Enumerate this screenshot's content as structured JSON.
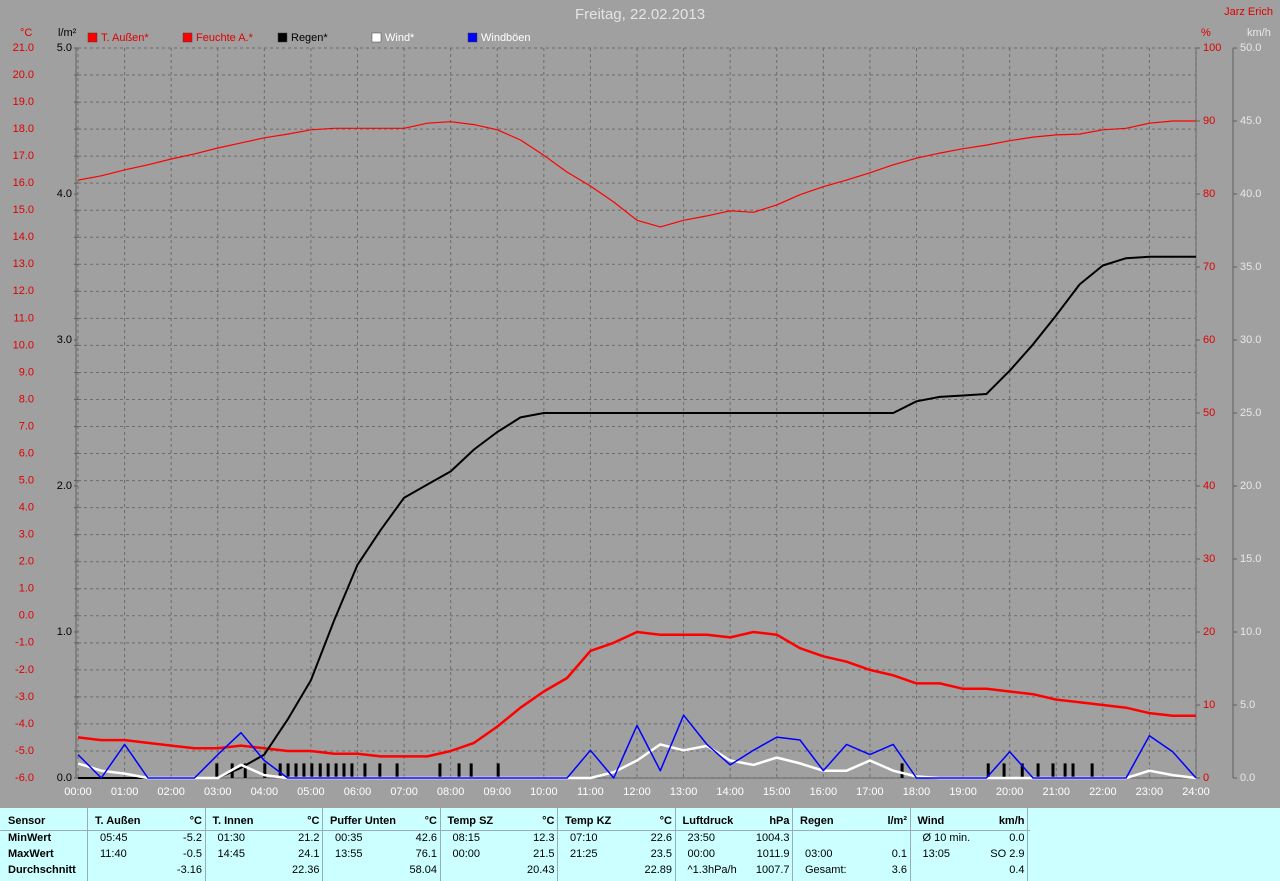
{
  "chart_data": {
    "type": "line",
    "title": "Freitag, 22.02.2013",
    "author": "Jarz Erich",
    "x": [
      0,
      0.5,
      1,
      1.5,
      2,
      2.5,
      3,
      3.5,
      4,
      4.5,
      5,
      5.5,
      6,
      6.5,
      7,
      7.5,
      8,
      8.5,
      9,
      9.5,
      10,
      10.5,
      11,
      11.5,
      12,
      12.5,
      13,
      13.5,
      14,
      14.5,
      15,
      15.5,
      16,
      16.5,
      17,
      17.5,
      18,
      18.5,
      19,
      19.5,
      20,
      20.5,
      21,
      21.5,
      22,
      22.5,
      23,
      23.5,
      24
    ],
    "xlim": [
      0,
      24
    ],
    "xticks": [
      {
        "value": 0,
        "label": "00:00"
      },
      {
        "value": 1,
        "label": "01:00"
      },
      {
        "value": 2,
        "label": "02:00"
      },
      {
        "value": 3,
        "label": "03:00"
      },
      {
        "value": 4,
        "label": "04:00"
      },
      {
        "value": 5,
        "label": "05:00"
      },
      {
        "value": 6,
        "label": "06:00"
      },
      {
        "value": 7,
        "label": "07:00"
      },
      {
        "value": 8,
        "label": "08:00"
      },
      {
        "value": 9,
        "label": "09:00"
      },
      {
        "value": 10,
        "label": "10:00"
      },
      {
        "value": 11,
        "label": "11:00"
      },
      {
        "value": 12,
        "label": "12:00"
      },
      {
        "value": 13,
        "label": "13:00"
      },
      {
        "value": 14,
        "label": "14:00"
      },
      {
        "value": 15,
        "label": "15:00"
      },
      {
        "value": 16,
        "label": "16:00"
      },
      {
        "value": 17,
        "label": "17:00"
      },
      {
        "value": 18,
        "label": "18:00"
      },
      {
        "value": 19,
        "label": "19:00"
      },
      {
        "value": 20,
        "label": "20:00"
      },
      {
        "value": 21,
        "label": "21:00"
      },
      {
        "value": 22,
        "label": "22:00"
      },
      {
        "value": 23,
        "label": "23:00"
      },
      {
        "value": 24,
        "label": "24:00"
      }
    ],
    "grid": true,
    "axes": [
      {
        "unit": "°C",
        "color": "#e00000",
        "lim": [
          -6,
          21
        ],
        "ticks": [
          {
            "value": -6,
            "label": "-6.0"
          },
          {
            "value": -5,
            "label": "-5.0"
          },
          {
            "value": -4,
            "label": "-4.0"
          },
          {
            "value": -3,
            "label": "-3.0"
          },
          {
            "value": -2,
            "label": "-2.0"
          },
          {
            "value": -1,
            "label": "-1.0"
          },
          {
            "value": 0,
            "label": "0.0"
          },
          {
            "value": 1,
            "label": "1.0"
          },
          {
            "value": 2,
            "label": "2.0"
          },
          {
            "value": 3,
            "label": "3.0"
          },
          {
            "value": 4,
            "label": "4.0"
          },
          {
            "value": 5,
            "label": "5.0"
          },
          {
            "value": 6,
            "label": "6.0"
          },
          {
            "value": 7,
            "label": "7.0"
          },
          {
            "value": 8,
            "label": "8.0"
          },
          {
            "value": 9,
            "label": "9.0"
          },
          {
            "value": 10,
            "label": "10.0"
          },
          {
            "value": 11,
            "label": "11.0"
          },
          {
            "value": 12,
            "label": "12.0"
          },
          {
            "value": 13,
            "label": "13.0"
          },
          {
            "value": 14,
            "label": "14.0"
          },
          {
            "value": 15,
            "label": "15.0"
          },
          {
            "value": 16,
            "label": "16.0"
          },
          {
            "value": 17,
            "label": "17.0"
          },
          {
            "value": 18,
            "label": "18.0"
          },
          {
            "value": 19,
            "label": "19.0"
          },
          {
            "value": 20,
            "label": "20.0"
          },
          {
            "value": 21,
            "label": "21.0"
          }
        ]
      },
      {
        "unit": "l/m²",
        "color": "#000000",
        "lim": [
          0,
          5
        ],
        "ticks": [
          {
            "value": 0,
            "label": "0.0"
          },
          {
            "value": 1,
            "label": "1.0"
          },
          {
            "value": 2,
            "label": "2.0"
          },
          {
            "value": 3,
            "label": "3.0"
          },
          {
            "value": 4,
            "label": "4.0"
          },
          {
            "value": 5,
            "label": "5.0"
          }
        ]
      },
      {
        "unit": "%",
        "color": "#e00000",
        "lim": [
          0,
          100
        ],
        "ticks": [
          0,
          10,
          20,
          30,
          40,
          50,
          60,
          70,
          80,
          90,
          100
        ]
      },
      {
        "unit": "km/h",
        "color": "#e8e8e8",
        "lim": [
          0,
          50
        ],
        "ticks": [
          {
            "value": 0,
            "label": "0.0"
          },
          {
            "value": 5,
            "label": "5.0"
          },
          {
            "value": 10,
            "label": "10.0"
          },
          {
            "value": 15,
            "label": "15.0"
          },
          {
            "value": 20,
            "label": "20.0"
          },
          {
            "value": 25,
            "label": "25.0"
          },
          {
            "value": 30,
            "label": "30.0"
          },
          {
            "value": 35,
            "label": "35.0"
          },
          {
            "value": 40,
            "label": "40.0"
          },
          {
            "value": 45,
            "label": "45.0"
          },
          {
            "value": 50,
            "label": "50.0"
          }
        ]
      }
    ],
    "series": [
      {
        "name": "T. Außen*",
        "color": "#ff0000",
        "axis": 0,
        "values": [
          -4.5,
          -4.6,
          -4.6,
          -4.7,
          -4.8,
          -4.9,
          -4.9,
          -4.8,
          -4.9,
          -5.0,
          -5.0,
          -5.1,
          -5.1,
          -5.2,
          -5.2,
          -5.2,
          -5.0,
          -4.7,
          -4.1,
          -3.4,
          -2.8,
          -2.3,
          -1.3,
          -1.0,
          -0.6,
          -0.7,
          -0.7,
          -0.7,
          -0.8,
          -0.6,
          -0.7,
          -1.2,
          -1.5,
          -1.7,
          -2.0,
          -2.2,
          -2.5,
          -2.5,
          -2.7,
          -2.7,
          -2.8,
          -2.9,
          -3.1,
          -3.2,
          -3.3,
          -3.4,
          -3.6,
          -3.7,
          -3.7
        ]
      },
      {
        "name": "Feuchte A.*",
        "color": "#ff0000",
        "axis": 2,
        "values": [
          81.9,
          82.5,
          83.3,
          84.0,
          84.8,
          85.5,
          86.3,
          87.0,
          87.7,
          88.2,
          88.8,
          89.0,
          89.0,
          89.0,
          89.0,
          89.7,
          89.9,
          89.5,
          88.8,
          87.4,
          85.3,
          83.0,
          81.1,
          78.9,
          76.4,
          75.5,
          76.4,
          77.0,
          77.7,
          77.5,
          78.5,
          79.9,
          81.0,
          81.9,
          82.9,
          84.0,
          84.9,
          85.6,
          86.2,
          86.7,
          87.3,
          87.8,
          88.1,
          88.2,
          88.8,
          89.0,
          89.7,
          90.0,
          90.0
        ]
      },
      {
        "name": "Regen*",
        "color": "#000000",
        "axis": 1,
        "values": [
          0,
          0,
          0,
          0,
          0,
          0,
          0,
          0.07,
          0.16,
          0.4,
          0.67,
          1.08,
          1.46,
          1.7,
          1.92,
          2.01,
          2.1,
          2.25,
          2.37,
          2.47,
          2.5,
          2.5,
          2.5,
          2.5,
          2.5,
          2.5,
          2.5,
          2.5,
          2.5,
          2.5,
          2.5,
          2.5,
          2.5,
          2.5,
          2.5,
          2.5,
          2.58,
          2.61,
          2.62,
          2.63,
          2.79,
          2.97,
          3.17,
          3.38,
          3.51,
          3.56,
          3.57,
          3.57,
          3.57
        ]
      },
      {
        "name": "Wind*",
        "color": "#ffffff",
        "axis": 3,
        "values": [
          1.0,
          0.5,
          0.3,
          0,
          0,
          0,
          0,
          0.9,
          0.2,
          0,
          0,
          0,
          0,
          0,
          0,
          0,
          0,
          0,
          0,
          0,
          0,
          0,
          0,
          0.4,
          1.2,
          2.3,
          1.9,
          2.2,
          1.2,
          0.9,
          1.4,
          1.0,
          0.5,
          0.5,
          1.2,
          0.5,
          0.1,
          0,
          0,
          0,
          0,
          0,
          0,
          0,
          0,
          0,
          0.5,
          0.2,
          0
        ]
      },
      {
        "name": "Windböen",
        "color": "#0000ff",
        "axis": 3,
        "values": [
          1.6,
          0,
          2.3,
          0,
          0,
          0,
          1.6,
          3.1,
          1.2,
          0,
          0,
          0,
          0,
          0,
          0,
          0,
          0,
          0,
          0,
          0,
          0,
          0,
          1.9,
          0,
          3.6,
          0.5,
          4.3,
          2.3,
          0.9,
          1.9,
          2.8,
          2.6,
          0.5,
          2.3,
          1.6,
          2.3,
          0,
          0,
          0,
          0,
          1.8,
          0,
          0,
          0,
          0,
          0,
          2.9,
          1.8,
          0
        ]
      }
    ],
    "rain_bars": {
      "color": "#000000",
      "axis": 1,
      "x": [
        2.98,
        3.31,
        3.59,
        4.01,
        4.34,
        4.51,
        4.68,
        4.85,
        5.02,
        5.2,
        5.37,
        5.54,
        5.71,
        5.88,
        6.16,
        6.48,
        6.85,
        7.77,
        8.18,
        8.44,
        9.02,
        17.69,
        19.54,
        19.88,
        20.27,
        20.61,
        20.93,
        21.19,
        21.36,
        21.77
      ],
      "values": [
        0.1,
        0.1,
        0.1,
        0.1,
        0.1,
        0.1,
        0.1,
        0.1,
        0.1,
        0.1,
        0.1,
        0.1,
        0.1,
        0.1,
        0.1,
        0.1,
        0.1,
        0.1,
        0.1,
        0.1,
        0.1,
        0.1,
        0.1,
        0.1,
        0.1,
        0.1,
        0.1,
        0.1,
        0.1,
        0.1
      ]
    }
  },
  "table": {
    "row_labels": [
      "Sensor",
      "MinWert",
      "MaxWert",
      "Durchschnitt"
    ],
    "groups": [
      {
        "name": "T. Außen",
        "unit": "°C",
        "rows": [
          [
            "05:45",
            "-5.2"
          ],
          [
            "11:40",
            "-0.5"
          ],
          [
            null,
            "-3.16"
          ]
        ]
      },
      {
        "name": "T. Innen",
        "unit": "°C",
        "rows": [
          [
            "01:30",
            "21.2"
          ],
          [
            "14:45",
            "24.1"
          ],
          [
            null,
            "22.36"
          ]
        ]
      },
      {
        "name": "Puffer Unten",
        "unit": "°C",
        "rows": [
          [
            "00:35",
            "42.6"
          ],
          [
            "13:55",
            "76.1"
          ],
          [
            null,
            "58.04"
          ]
        ]
      },
      {
        "name": "Temp SZ",
        "unit": "°C",
        "rows": [
          [
            "08:15",
            "12.3"
          ],
          [
            "00:00",
            "21.5"
          ],
          [
            null,
            "20.43"
          ]
        ]
      },
      {
        "name": "Temp KZ",
        "unit": "°C",
        "rows": [
          [
            "07:10",
            "22.6"
          ],
          [
            "21:25",
            "23.5"
          ],
          [
            null,
            "22.89"
          ]
        ]
      },
      {
        "name": "Luftdruck",
        "unit": "hPa",
        "rows": [
          [
            "23:50",
            "1004.3"
          ],
          [
            "00:00",
            "1011.9"
          ],
          [
            "^1.3hPa/h",
            "1007.7"
          ]
        ]
      },
      {
        "name": "Regen",
        "unit": "l/m²",
        "rows": [
          [
            null,
            null
          ],
          [
            "03:00",
            "0.1"
          ],
          [
            "Gesamt:",
            "3.6"
          ]
        ]
      },
      {
        "name": "Wind",
        "unit": "km/h",
        "rows": [
          [
            "Ø 10 min.",
            "0.0"
          ],
          [
            "13:05",
            "SO 2.9"
          ],
          [
            null,
            "0.4"
          ]
        ]
      }
    ]
  }
}
